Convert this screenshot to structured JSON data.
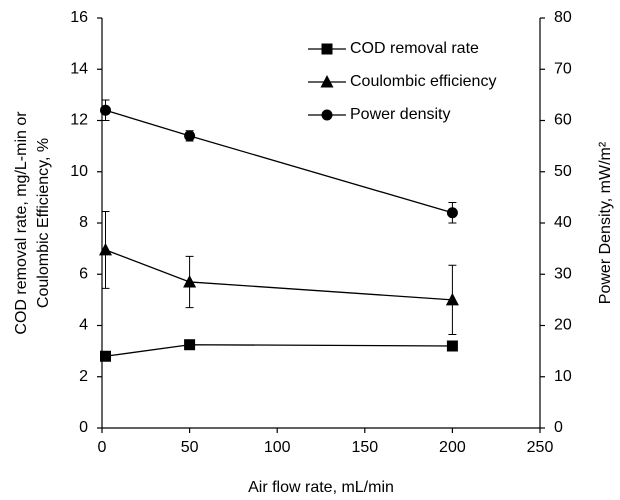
{
  "chart_data": {
    "type": "line",
    "x_label": "Air flow rate, mL/min",
    "y_label": [
      "COD removal rate, mg/L-min or",
      "Coulombic Efficiency, %"
    ],
    "y2_label": "Power Density, mW/m²",
    "x": [
      2,
      50,
      200
    ],
    "xlim": [
      0,
      250
    ],
    "xticks": [
      0,
      50,
      100,
      150,
      200,
      250
    ],
    "ylim": [
      0,
      16
    ],
    "yticks": [
      0,
      2,
      4,
      6,
      8,
      10,
      12,
      14,
      16
    ],
    "y2lim": [
      0,
      80
    ],
    "y2ticks": [
      0,
      10,
      20,
      30,
      40,
      50,
      60,
      70,
      80
    ],
    "legend": "upper right",
    "series": [
      {
        "name": "COD removal rate",
        "color": "#000000",
        "marker": "square",
        "values": [
          2.8,
          3.25,
          3.2
        ]
      },
      {
        "name": "Coulombic efficiency",
        "color": "#000000",
        "marker": "triangle",
        "values": [
          6.95,
          5.7,
          5.0
        ],
        "errors": [
          1.5,
          1.0,
          1.35
        ]
      },
      {
        "name": "Power density",
        "color": "#000000",
        "marker": "circle",
        "axis": "y2",
        "values": [
          62,
          57,
          42
        ],
        "errors": [
          2,
          1,
          2
        ]
      }
    ]
  }
}
